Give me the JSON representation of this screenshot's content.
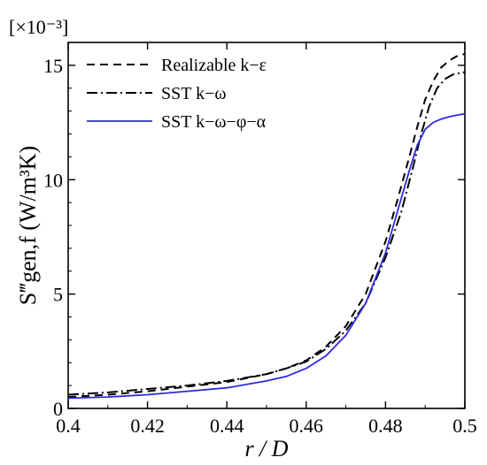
{
  "chart_data": {
    "type": "line",
    "title": "",
    "xlabel": "r / D",
    "ylabel": "S‴gen,f (W/m³K)",
    "y_multiplier": "[×10⁻³]",
    "xlim": [
      0.4,
      0.5
    ],
    "ylim": [
      0,
      16
    ],
    "xticks": [
      "0.4",
      "0.42",
      "0.44",
      "0.46",
      "0.48",
      "0.5"
    ],
    "yticks": [
      "0",
      "5",
      "10",
      "15"
    ],
    "grid": false,
    "legend_position": "top-left",
    "series": [
      {
        "name": "Realizable k−ε",
        "style": "dashed",
        "color": "#000000",
        "x": [
          0.4,
          0.41,
          0.42,
          0.43,
          0.44,
          0.45,
          0.455,
          0.46,
          0.465,
          0.47,
          0.475,
          0.48,
          0.483,
          0.486,
          0.488,
          0.49,
          0.492,
          0.494,
          0.496,
          0.498,
          0.5
        ],
        "y": [
          0.5,
          0.6,
          0.75,
          0.95,
          1.15,
          1.5,
          1.75,
          2.1,
          2.7,
          3.6,
          5.0,
          7.3,
          9.1,
          11.0,
          12.3,
          13.5,
          14.3,
          14.9,
          15.2,
          15.4,
          15.5
        ]
      },
      {
        "name": "SST k−ω",
        "style": "dashdot",
        "color": "#000000",
        "x": [
          0.4,
          0.41,
          0.42,
          0.43,
          0.44,
          0.45,
          0.455,
          0.46,
          0.465,
          0.47,
          0.475,
          0.48,
          0.484,
          0.487,
          0.489,
          0.491,
          0.493,
          0.495,
          0.497,
          0.5
        ],
        "y": [
          0.6,
          0.7,
          0.85,
          1.0,
          1.2,
          1.5,
          1.75,
          2.05,
          2.6,
          3.4,
          4.6,
          6.6,
          8.6,
          10.6,
          12.0,
          13.2,
          14.0,
          14.4,
          14.6,
          14.7
        ]
      },
      {
        "name": "SST k−ω−φ−α",
        "style": "solid",
        "color": "#2b2bdf",
        "x": [
          0.4,
          0.41,
          0.42,
          0.43,
          0.44,
          0.45,
          0.455,
          0.46,
          0.465,
          0.47,
          0.475,
          0.48,
          0.483,
          0.486,
          0.488,
          0.49,
          0.492,
          0.494,
          0.496,
          0.498,
          0.5
        ],
        "y": [
          0.45,
          0.5,
          0.6,
          0.75,
          0.9,
          1.2,
          1.4,
          1.75,
          2.3,
          3.2,
          4.6,
          6.8,
          8.6,
          10.4,
          11.5,
          12.2,
          12.5,
          12.65,
          12.75,
          12.82,
          12.88
        ]
      }
    ]
  }
}
